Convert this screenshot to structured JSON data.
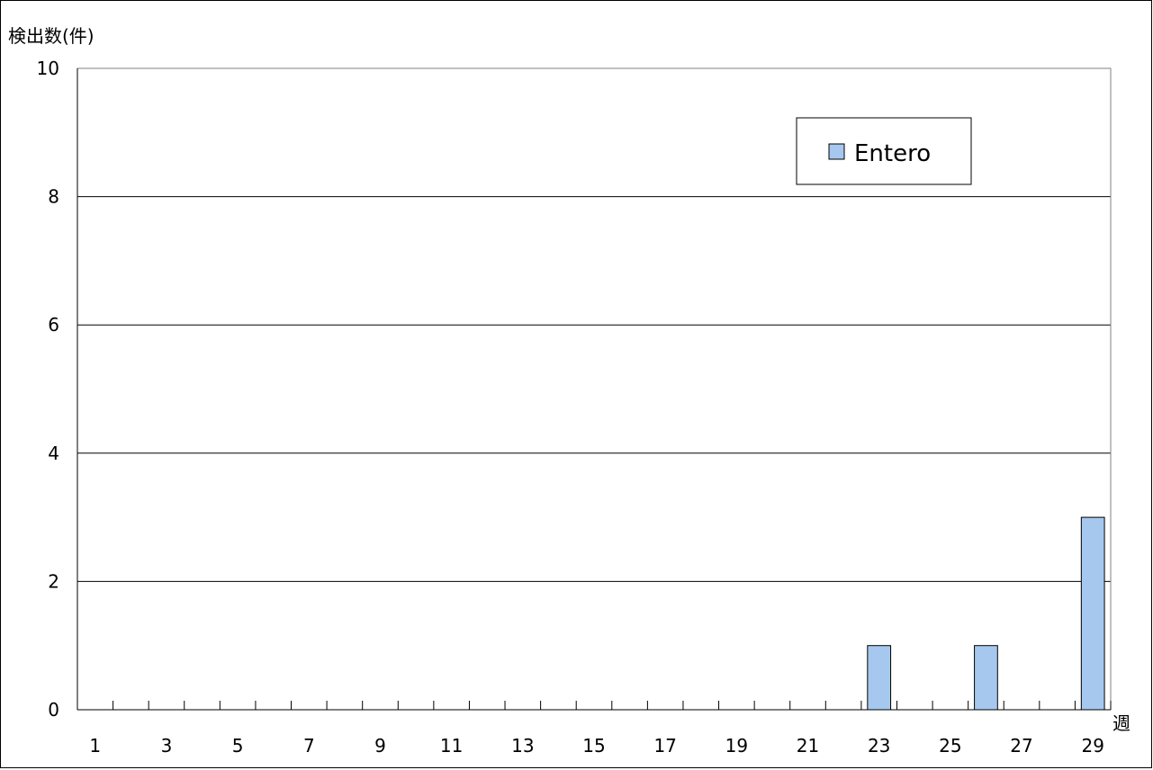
{
  "chart_data": {
    "type": "bar",
    "title": "",
    "ylabel": "検出数(件)",
    "xlabel": "週",
    "ylim": [
      0,
      10
    ],
    "yticks": [
      0,
      2,
      4,
      6,
      8,
      10
    ],
    "x_weeks": [
      1,
      2,
      3,
      4,
      5,
      6,
      7,
      8,
      9,
      10,
      11,
      12,
      13,
      14,
      15,
      16,
      17,
      18,
      19,
      20,
      21,
      22,
      23,
      24,
      25,
      26,
      27,
      28,
      29
    ],
    "x_tick_labels": [
      "1",
      "3",
      "5",
      "7",
      "9",
      "11",
      "13",
      "15",
      "17",
      "19",
      "21",
      "23",
      "25",
      "27",
      "29"
    ],
    "series": [
      {
        "name": "Entero",
        "color": "#a6c8ee",
        "values": [
          0,
          0,
          0,
          0,
          0,
          0,
          0,
          0,
          0,
          0,
          0,
          0,
          0,
          0,
          0,
          0,
          0,
          0,
          0,
          0,
          0,
          0,
          1,
          0,
          0,
          1,
          0,
          0,
          3
        ]
      }
    ],
    "grid": true,
    "legend_position": "top-right"
  }
}
